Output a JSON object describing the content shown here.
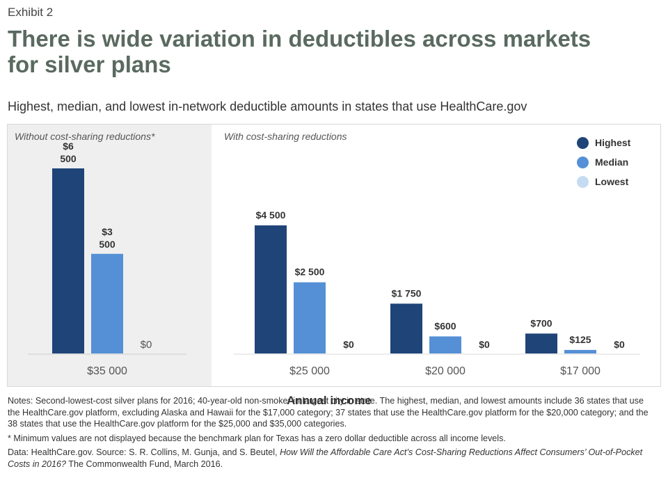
{
  "exhibit": "Exhibit 2",
  "title_lines": [
    "There is wide variation in deductibles across markets",
    "for silver plans"
  ],
  "subtitle": "Highest, median, and lowest in-network deductible amounts in states that use HealthCare.gov",
  "panels": {
    "left_label": "Without cost-sharing reductions*",
    "right_label": "With cost-sharing reductions"
  },
  "x_axis_title": "Annual income",
  "legend": [
    {
      "name": "Highest",
      "color": "#1f4478"
    },
    {
      "name": "Median",
      "color": "#5590d6"
    },
    {
      "name": "Lowest",
      "color": "#c5dbf2"
    }
  ],
  "chart_data": {
    "type": "bar",
    "xlabel": "Annual income",
    "ylabel": "",
    "categories": [
      "$35 000",
      "$25 000",
      "$20 000",
      "$17 000"
    ],
    "series": [
      {
        "name": "Highest",
        "values": [
          6500,
          4500,
          1750,
          700
        ],
        "labels": [
          "$6 500",
          "$4 500",
          "$1 750",
          "$700"
        ]
      },
      {
        "name": "Median",
        "values": [
          3500,
          2500,
          600,
          125
        ],
        "labels": [
          "$3 500",
          "$2 500",
          "$600",
          "$125"
        ]
      },
      {
        "name": "Lowest",
        "values": [
          0,
          0,
          0,
          0
        ],
        "labels": [
          "$0",
          "$0",
          "$0",
          "$0"
        ]
      }
    ],
    "groups": [
      "Without cost-sharing reductions*",
      "With cost-sharing reductions",
      "With cost-sharing reductions",
      "With cost-sharing reductions"
    ],
    "ylim": [
      0,
      6500
    ],
    "grid": false,
    "legend_position": "top-right"
  },
  "notes": {
    "note1": "Notes: Second-lowest-cost silver plans for 2016; 40-year-old non-smoker in largest city in state. The highest, median, and lowest amounts include 36 states that use the HealthCare.gov platform, excluding Alaska and Hawaii for the $17,000 category; 37 states that use the HealthCare.gov platform for the $20,000 category; and the 38 states that use the HealthCare.gov platform for the $25,000 and $35,000 categories.",
    "note2": "* Minimum values are not displayed because the benchmark plan for Texas has a zero dollar deductible across all income levels.",
    "source_prefix": "Data: HealthCare.gov. Source: S. R. Collins, M. Gunja, and S. Beutel, ",
    "source_title": "How Will the Affordable Care Act’s Cost-Sharing Reductions Affect Consumers’ Out-of-Pocket Costs in 2016?",
    "source_suffix": " The Commonwealth Fund, March 2016."
  }
}
